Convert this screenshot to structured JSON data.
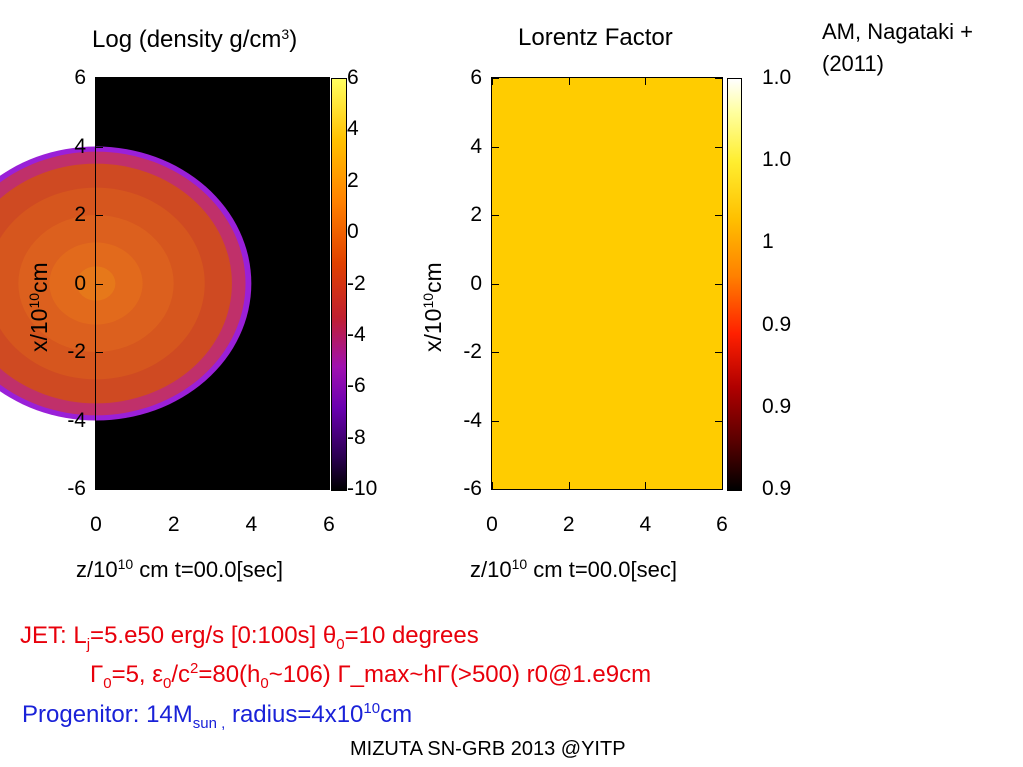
{
  "chart_data": [
    {
      "type": "heatmap",
      "title": "Log (density g/cm³)",
      "title_text": "Log (density g/cm",
      "title_sup": "3",
      "title_end": ")",
      "xlabel_prefix": "z/10",
      "xlabel_sup": "10",
      "xlabel_suffix": " cm  t=00.0[sec]",
      "ylabel_prefix": "x/10",
      "ylabel_sup": "10",
      "ylabel_suffix": "cm",
      "xlim": [
        0,
        6
      ],
      "ylim": [
        -6,
        6
      ],
      "x_ticks": [
        "0",
        "2",
        "4",
        "6"
      ],
      "y_ticks": [
        "6",
        "4",
        "2",
        "0",
        "-2",
        "-4",
        "-6"
      ],
      "colorbar_range": [
        -10,
        6
      ],
      "colorbar_ticks": [
        "6",
        "4",
        "2",
        "0",
        "-2",
        "-4",
        "-6",
        "-8",
        "-10"
      ],
      "colormap": [
        "#000000",
        "#3a0070",
        "#8a00c8",
        "#c02020",
        "#e85000",
        "#ff9800",
        "#ffe000",
        "#ffffa0"
      ],
      "background_value": -10,
      "star_radius": 4,
      "profile": [
        {
          "r": 0.0,
          "value": 1.0,
          "color": "#ee8a1a"
        },
        {
          "r": 0.5,
          "value": 0.3,
          "color": "#e6781a"
        },
        {
          "r": 1.2,
          "value": -0.3,
          "color": "#e26a1c"
        },
        {
          "r": 2.0,
          "value": -0.8,
          "color": "#dc601e"
        },
        {
          "r": 2.8,
          "value": -1.2,
          "color": "#d6561e"
        },
        {
          "r": 3.5,
          "value": -1.8,
          "color": "#cf4a22"
        },
        {
          "r": 3.85,
          "value": -3.0,
          "color": "#c0306a"
        },
        {
          "r": 4.0,
          "value": -6.0,
          "color": "#9a20d8"
        }
      ]
    },
    {
      "type": "heatmap",
      "title": "Lorentz Factor",
      "xlabel_prefix": "z/10",
      "xlabel_sup": "10",
      "xlabel_suffix": " cm  t=00.0[sec]",
      "ylabel_prefix": "x/10",
      "ylabel_sup": "10",
      "ylabel_suffix": "cm",
      "xlim": [
        0,
        6
      ],
      "ylim": [
        -6,
        6
      ],
      "x_ticks": [
        "0",
        "2",
        "4",
        "6"
      ],
      "y_ticks": [
        "6",
        "4",
        "2",
        "0",
        "-2",
        "-4",
        "-6"
      ],
      "colorbar_ticks": [
        "1.0",
        "1.0",
        "1",
        "0.9",
        "0.9",
        "0.9"
      ],
      "colormap": [
        "#000000",
        "#8a0000",
        "#e00000",
        "#ff7000",
        "#ffcc00",
        "#ffff40",
        "#ffffff"
      ],
      "uniform_value": 1,
      "uniform_color": "#ffcc00"
    }
  ],
  "reference": [
    "AM, Nagataki +",
    "(2011)"
  ],
  "jet": {
    "prefix": "JET: L",
    "L_sub": "j",
    "luminosity": "=5.e50 erg/s [0:100s]  θ",
    "theta_sub": "0",
    "theta_val": "=10 degrees"
  },
  "gamma": {
    "g": "Γ",
    "g_sub": "0",
    "g_val": "=5, ε",
    "e_sub": "0",
    "e_mid": "/c",
    "c_sup": "2",
    "h_part": "=80(h",
    "h_sub": "0",
    "rest": "~106) Γ_max~hΓ(>500) r0@1.e9cm"
  },
  "progenitor": {
    "prefix": "Progenitor: 14M",
    "m_sub": "sun ,",
    "mid": " radius=4x10",
    "r_sup": "10",
    "unit": "cm"
  },
  "footer": "MIZUTA SN-GRB 2013 @YITP",
  "colors": {
    "jet_text": "#e8000b",
    "progenitor_text": "#1a22d8"
  }
}
